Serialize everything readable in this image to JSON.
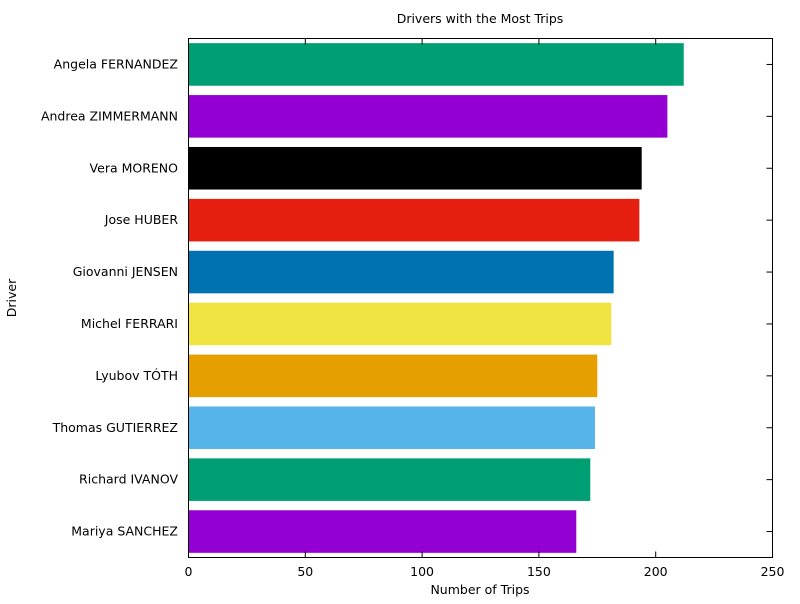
{
  "chart_data": {
    "type": "bar",
    "orientation": "horizontal",
    "title": "Drivers with the Most Trips",
    "xlabel": "Number of Trips",
    "ylabel": "Driver",
    "xlim": [
      0,
      250
    ],
    "xticks": [
      0,
      50,
      100,
      150,
      200,
      250
    ],
    "grid": false,
    "legend": "none",
    "categories": [
      "Angela FERNANDEZ",
      "Andrea ZIMMERMANN",
      "Vera MORENO",
      "Jose HUBER",
      "Giovanni JENSEN",
      "Michel FERRARI",
      "Lyubov TÓTH",
      "Thomas GUTIERREZ",
      "Richard IVANOV",
      "Mariya SANCHEZ"
    ],
    "values": [
      212,
      205,
      194,
      193,
      182,
      181,
      175,
      174,
      172,
      166
    ],
    "colors": [
      "#009e73",
      "#9400d3",
      "#000000",
      "#e51e10",
      "#0072b2",
      "#f0e442",
      "#e69f00",
      "#56b4e9",
      "#009e73",
      "#9400d3"
    ]
  }
}
